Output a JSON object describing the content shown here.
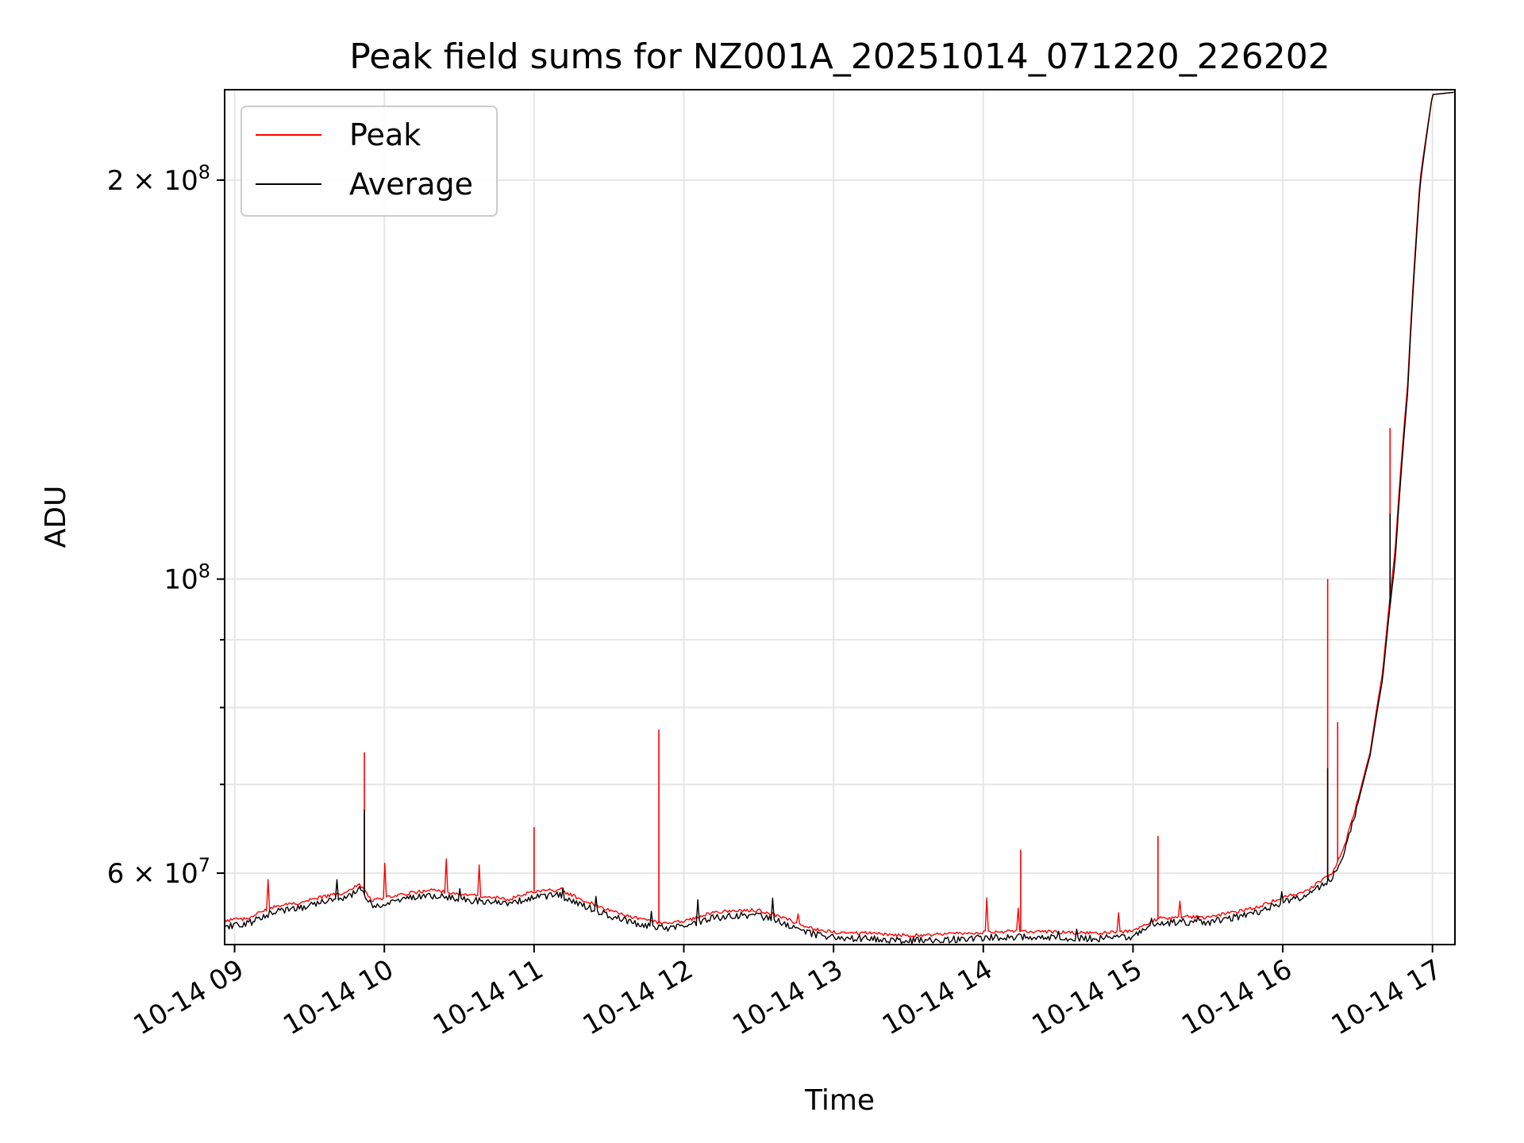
{
  "chart_data": {
    "type": "line",
    "title": "Peak field sums for NZ001A_20251014_071220_226202",
    "xlabel": "Time",
    "ylabel": "ADU",
    "x_tick_labels": [
      "10-14 09",
      "10-14 10",
      "10-14 11",
      "10-14 12",
      "10-14 13",
      "10-14 14",
      "10-14 15",
      "10-14 16",
      "10-14 17"
    ],
    "y_scale": "log",
    "y_tick_labels": [
      {
        "value": 60000000,
        "base": "6 × 10",
        "exp": "7"
      },
      {
        "value": 100000000,
        "base": "10",
        "exp": "8"
      },
      {
        "value": 200000000,
        "base": "2 × 10",
        "exp": "8"
      }
    ],
    "xlim": [
      "2025-10-14T08:56",
      "2025-10-14T17:09"
    ],
    "ylim": [
      53000000,
      234000000
    ],
    "grid": true,
    "legend_position": "upper left",
    "series": [
      {
        "name": "Peak",
        "color": "#ff0000",
        "x": [
          "08:56",
          "09:05",
          "09:15",
          "09:25",
          "09:35",
          "09:45",
          "09:50",
          "09:55",
          "10:00",
          "10:10",
          "10:20",
          "10:30",
          "10:40",
          "10:50",
          "11:00",
          "11:10",
          "11:20",
          "11:30",
          "11:40",
          "11:50",
          "12:00",
          "12:10",
          "12:20",
          "12:30",
          "12:40",
          "12:50",
          "13:00",
          "13:15",
          "13:30",
          "13:45",
          "14:00",
          "14:15",
          "14:30",
          "14:45",
          "15:00",
          "15:10",
          "15:20",
          "15:30",
          "15:40",
          "15:50",
          "16:00",
          "16:10",
          "16:20",
          "16:25",
          "16:30",
          "16:35",
          "16:40",
          "16:45",
          "16:50",
          "16:55",
          "17:00",
          "17:09"
        ],
        "y": [
          55200000,
          55400000,
          56500000,
          56900000,
          57500000,
          58000000,
          58800000,
          57200000,
          57400000,
          57900000,
          58200000,
          57800000,
          57600000,
          57300000,
          58100000,
          58200000,
          57200000,
          56200000,
          55500000,
          55000000,
          55100000,
          55900000,
          56200000,
          56200000,
          55500000,
          54500000,
          54100000,
          54000000,
          53800000,
          53900000,
          54100000,
          54200000,
          54100000,
          54000000,
          54200000,
          55400000,
          55600000,
          55500000,
          56000000,
          56500000,
          57500000,
          58200000,
          60000000,
          63000000,
          68000000,
          74000000,
          85000000,
          105000000,
          140000000,
          200000000,
          232000000,
          233000000
        ],
        "spikes": [
          {
            "x": "09:52",
            "y": 74000000
          },
          {
            "x": "11:50",
            "y": 77000000
          },
          {
            "x": "11:00",
            "y": 65000000
          },
          {
            "x": "14:15",
            "y": 62500000
          },
          {
            "x": "15:10",
            "y": 64000000
          },
          {
            "x": "16:18",
            "y": 100000000
          },
          {
            "x": "16:22",
            "y": 78000000
          },
          {
            "x": "16:43",
            "y": 130000000
          }
        ]
      },
      {
        "name": "Average",
        "color": "#000000",
        "x": [
          "08:56",
          "09:05",
          "09:15",
          "09:25",
          "09:35",
          "09:45",
          "09:50",
          "09:55",
          "10:00",
          "10:10",
          "10:20",
          "10:30",
          "10:40",
          "10:50",
          "11:00",
          "11:10",
          "11:20",
          "11:30",
          "11:40",
          "11:50",
          "12:00",
          "12:10",
          "12:20",
          "12:30",
          "12:40",
          "12:50",
          "13:00",
          "13:15",
          "13:30",
          "13:45",
          "14:00",
          "14:15",
          "14:30",
          "14:45",
          "15:00",
          "15:10",
          "15:20",
          "15:30",
          "15:40",
          "15:50",
          "16:00",
          "16:10",
          "16:20",
          "16:25",
          "16:30",
          "16:35",
          "16:40",
          "16:45",
          "16:50",
          "16:55",
          "17:00",
          "17:09"
        ],
        "y": [
          54800000,
          55000000,
          56100000,
          56500000,
          57100000,
          57600000,
          58400000,
          56800000,
          57000000,
          57500000,
          57800000,
          57400000,
          57200000,
          56900000,
          57700000,
          57800000,
          56800000,
          55800000,
          55100000,
          54600000,
          54700000,
          55500000,
          55800000,
          55800000,
          55100000,
          54100000,
          53700000,
          53600000,
          53400000,
          53500000,
          53700000,
          53800000,
          53700000,
          53600000,
          53800000,
          55000000,
          55200000,
          55100000,
          55600000,
          56100000,
          57100000,
          57800000,
          59600000,
          62600000,
          67600000,
          73600000,
          84000000,
          103000000,
          138000000,
          198000000,
          232000000,
          233000000
        ],
        "spikes": [
          {
            "x": "09:52",
            "y": 67000000
          },
          {
            "x": "16:18",
            "y": 72000000
          },
          {
            "x": "16:43",
            "y": 112000000
          }
        ]
      }
    ]
  }
}
